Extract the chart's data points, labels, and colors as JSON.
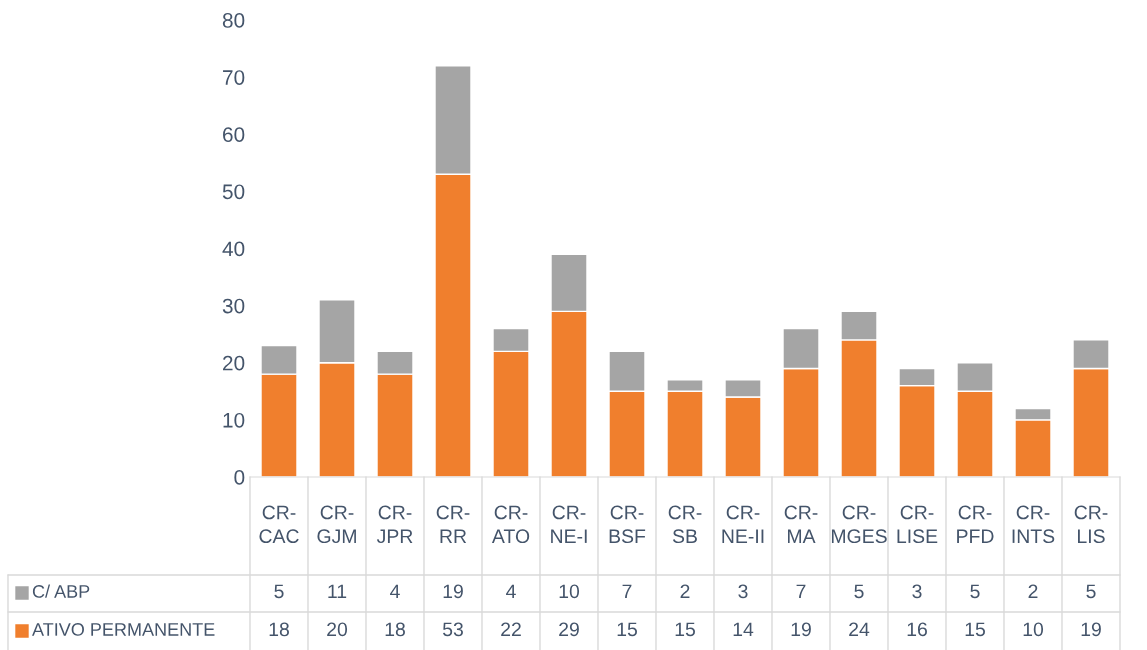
{
  "chart_data": {
    "type": "bar",
    "stacked": true,
    "data_labels": true,
    "legend": "bottom",
    "grid": false,
    "categories": [
      "CR-CAC",
      "CR-GJM",
      "CR-JPR",
      "CR-RR",
      "CR-ATO",
      "CR-NE-I",
      "CR-BSF",
      "CR-SB",
      "CR-NE-II",
      "CR-MA",
      "CR-MGES",
      "CR-LISE",
      "CR-PFD",
      "CR-INTS",
      "CR-LIS"
    ],
    "series": [
      {
        "name": "ATIVO PERMANENTE",
        "color": "#f07f2d",
        "values": [
          18,
          20,
          18,
          53,
          22,
          29,
          15,
          15,
          14,
          19,
          24,
          16,
          15,
          10,
          19
        ]
      },
      {
        "name": "C/ ABP",
        "color": "#a5a5a5",
        "values": [
          5,
          11,
          4,
          19,
          4,
          10,
          7,
          2,
          3,
          7,
          5,
          3,
          5,
          2,
          5
        ]
      }
    ],
    "ylim": [
      0,
      80
    ],
    "yticks": [
      0,
      10,
      20,
      30,
      40,
      50,
      60,
      70,
      80
    ]
  }
}
